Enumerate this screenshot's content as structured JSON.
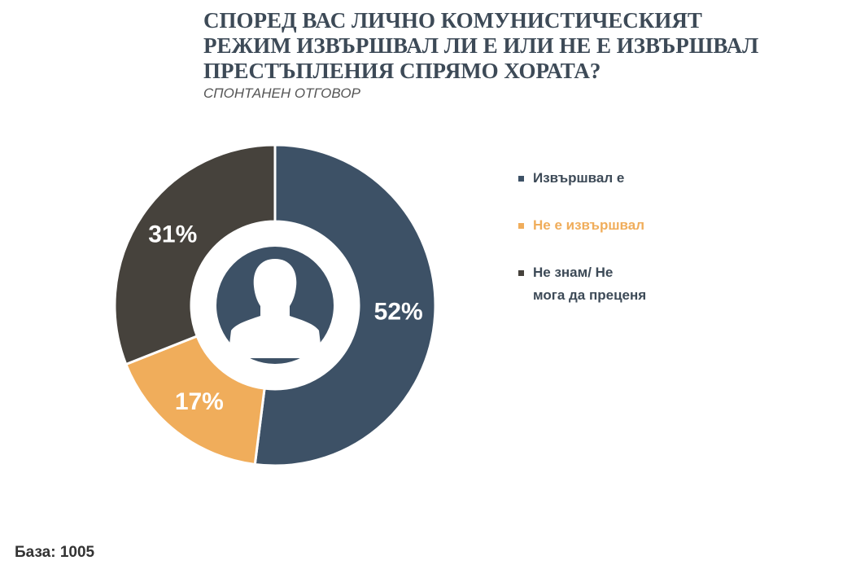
{
  "chart_data": {
    "type": "donut",
    "title": [
      "СПОРЕД ВАС ЛИЧНО КОМУНИСТИЧЕСКИЯТ",
      "РЕЖИМ ИЗВЪРШВАЛ ЛИ Е ИЛИ НЕ Е ИЗВЪРШВАЛ",
      "ПРЕСТЪПЛЕНИЯ СПРЯМО ХОРАТА?"
    ],
    "subtitle": "СПОНТАНЕН ОТГОВОР",
    "categories": [
      "Извършвал е",
      "Не е извършвал",
      "Не знам/ Не мога да преценя"
    ],
    "values": [
      52,
      17,
      31
    ],
    "value_labels": [
      "52%",
      "17%",
      "31%"
    ],
    "colors": [
      "#3d5166",
      "#f0ad5b",
      "#46423c"
    ],
    "legend": "right",
    "footnote": "База: 1005"
  }
}
